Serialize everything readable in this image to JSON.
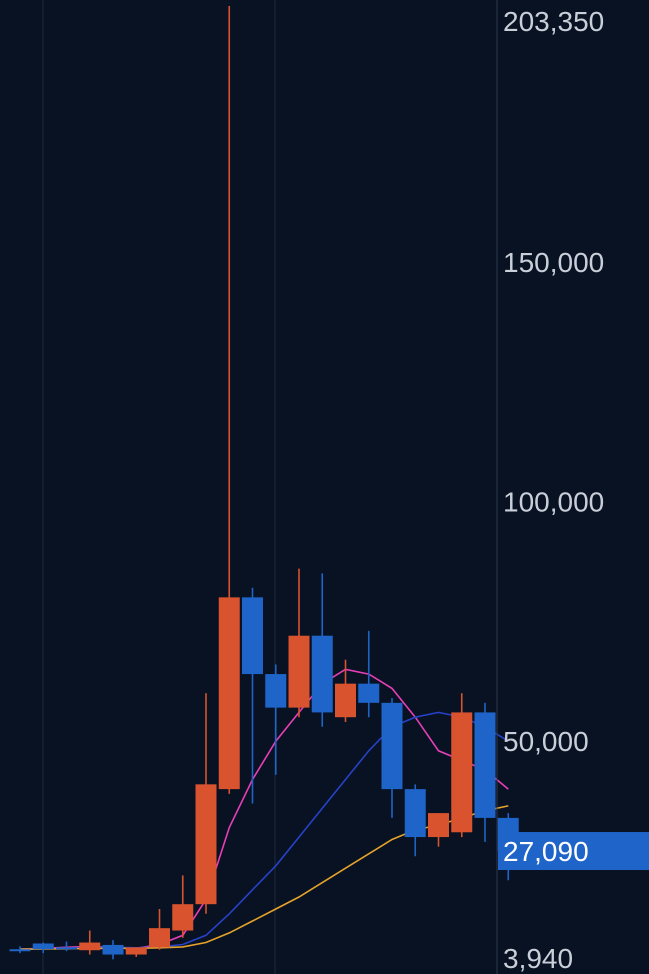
{
  "chart_data": {
    "type": "candlestick",
    "y_axis": {
      "ylim": [
        3940,
        203350
      ],
      "tick_labels": [
        "203,350",
        "150,000",
        "100,000",
        "50,000",
        "3,940"
      ],
      "tick_values": [
        203350,
        150000,
        100000,
        50000,
        3940
      ]
    },
    "current_price": {
      "value": 27090,
      "label": "27,090"
    },
    "candles": [
      {
        "open": 6500,
        "high": 7200,
        "low": 5800,
        "close": 6600,
        "color": "blue"
      },
      {
        "open": 6600,
        "high": 8000,
        "low": 5800,
        "close": 7800,
        "color": "blue"
      },
      {
        "open": 6800,
        "high": 8200,
        "low": 6200,
        "close": 7000,
        "color": "blue"
      },
      {
        "open": 6400,
        "high": 10500,
        "low": 5500,
        "close": 8000,
        "color": "red"
      },
      {
        "open": 7500,
        "high": 8500,
        "low": 4500,
        "close": 5500,
        "color": "blue"
      },
      {
        "open": 5500,
        "high": 7000,
        "low": 5000,
        "close": 7000,
        "color": "red"
      },
      {
        "open": 7000,
        "high": 15000,
        "low": 6500,
        "close": 11000,
        "color": "red"
      },
      {
        "open": 10500,
        "high": 22000,
        "low": 9000,
        "close": 16000,
        "color": "red"
      },
      {
        "open": 16000,
        "high": 60000,
        "low": 14000,
        "close": 41000,
        "color": "red"
      },
      {
        "open": 40000,
        "high": 203350,
        "low": 39000,
        "close": 80000,
        "color": "red"
      },
      {
        "open": 80000,
        "high": 82000,
        "low": 37000,
        "close": 64000,
        "color": "blue"
      },
      {
        "open": 64000,
        "high": 66000,
        "low": 43000,
        "close": 57000,
        "color": "blue"
      },
      {
        "open": 57000,
        "high": 86000,
        "low": 55000,
        "close": 72000,
        "color": "red"
      },
      {
        "open": 72000,
        "high": 85000,
        "low": 53000,
        "close": 56000,
        "color": "blue"
      },
      {
        "open": 55000,
        "high": 67000,
        "low": 54000,
        "close": 62000,
        "color": "red"
      },
      {
        "open": 62000,
        "high": 73000,
        "low": 55000,
        "close": 58000,
        "color": "blue"
      },
      {
        "open": 58000,
        "high": 59000,
        "low": 34000,
        "close": 40000,
        "color": "blue"
      },
      {
        "open": 40000,
        "high": 41000,
        "low": 26000,
        "close": 30000,
        "color": "blue"
      },
      {
        "open": 30000,
        "high": 35000,
        "low": 28000,
        "close": 35000,
        "color": "red"
      },
      {
        "open": 31000,
        "high": 60000,
        "low": 30000,
        "close": 56000,
        "color": "red"
      },
      {
        "open": 56000,
        "high": 58000,
        "low": 29000,
        "close": 34000,
        "color": "blue"
      },
      {
        "open": 34000,
        "high": 35000,
        "low": 21000,
        "close": 27090,
        "color": "blue"
      }
    ],
    "moving_averages": [
      {
        "color": "#e83fb8",
        "values": [
          6600,
          6800,
          7000,
          7200,
          7000,
          6800,
          7600,
          9500,
          17000,
          32000,
          42000,
          50000,
          56000,
          62000,
          65000,
          64000,
          61000,
          55000,
          48000,
          46000,
          44000,
          40000
        ]
      },
      {
        "color": "#2642c9",
        "values": [
          6600,
          6700,
          6800,
          7000,
          7000,
          6900,
          7100,
          7600,
          9500,
          14000,
          19000,
          24000,
          30000,
          36000,
          42000,
          48000,
          53000,
          55000,
          56000,
          55000,
          53000,
          50000
        ]
      },
      {
        "color": "#e6a32b",
        "values": [
          6600,
          6650,
          6700,
          6800,
          6800,
          6800,
          6900,
          7100,
          8000,
          10000,
          12500,
          15000,
          17500,
          20500,
          23500,
          26500,
          29500,
          31500,
          32500,
          34000,
          35500,
          36500
        ]
      }
    ],
    "colors": {
      "up": "#d9532f",
      "down": "#1f64c8",
      "background": "#081222",
      "grid": "#1e2a3c",
      "axis_border": "#2c3a4e",
      "label": "#c9ced8",
      "price_tag_bg": "#1f64c8"
    },
    "grid": true
  }
}
